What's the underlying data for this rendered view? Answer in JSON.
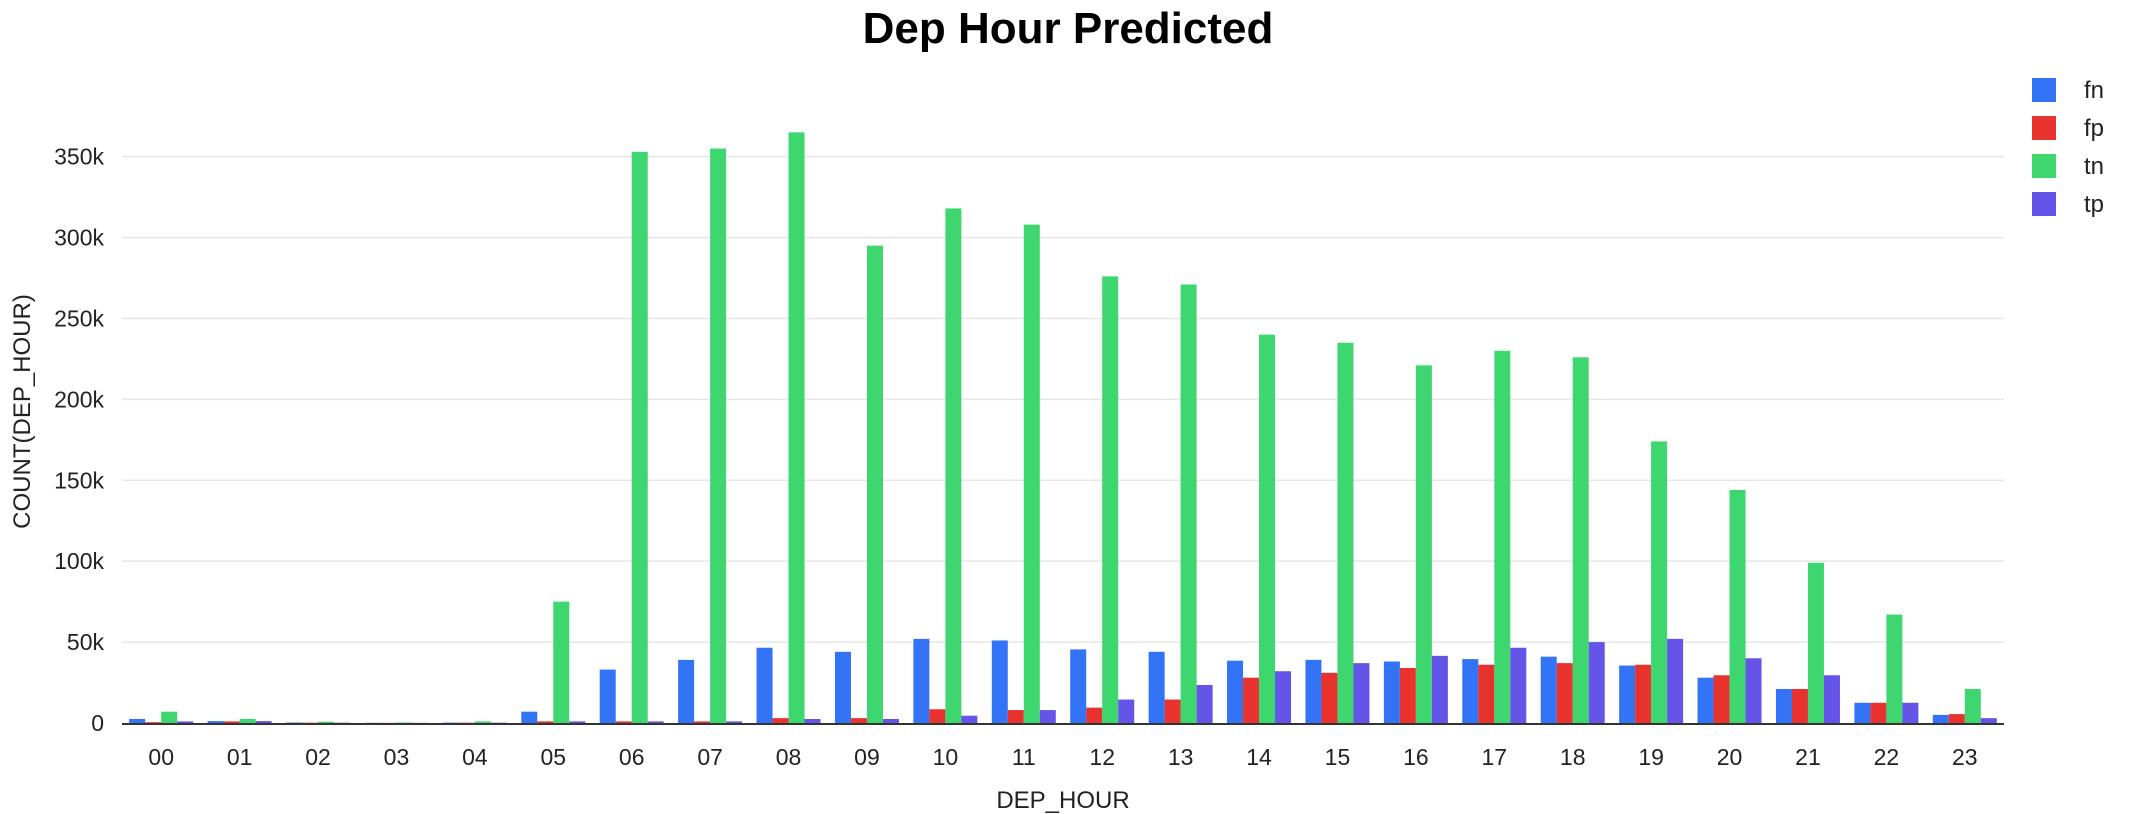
{
  "chart_data": {
    "type": "bar",
    "title": "Dep Hour Predicted",
    "xlabel": "DEP_HOUR",
    "ylabel": "COUNT(DEP_HOUR)",
    "ylim": [
      0,
      385000
    ],
    "yticks": [
      0,
      50000,
      100000,
      150000,
      200000,
      250000,
      300000,
      350000
    ],
    "ytick_labels": [
      "0",
      "50k",
      "100k",
      "150k",
      "200k",
      "250k",
      "300k",
      "350k"
    ],
    "grid": true,
    "legend_position": "top-right",
    "categories": [
      "00",
      "01",
      "02",
      "03",
      "04",
      "05",
      "06",
      "07",
      "08",
      "09",
      "10",
      "11",
      "12",
      "13",
      "14",
      "15",
      "16",
      "17",
      "18",
      "19",
      "20",
      "21",
      "22",
      "23"
    ],
    "series": [
      {
        "name": "fn",
        "color": "#3374f6",
        "values": [
          2500,
          1200,
          300,
          150,
          250,
          7000,
          33000,
          39000,
          46500,
          44000,
          52000,
          51000,
          45500,
          44000,
          38500,
          39000,
          38000,
          39500,
          41000,
          35500,
          28000,
          21000,
          12500,
          5000
        ]
      },
      {
        "name": "fp",
        "color": "#e8322d",
        "values": [
          500,
          1000,
          200,
          100,
          200,
          1000,
          1000,
          1000,
          3000,
          3000,
          8500,
          8000,
          9500,
          14500,
          28000,
          31000,
          34000,
          36000,
          37000,
          36000,
          29500,
          21000,
          12500,
          5500
        ]
      },
      {
        "name": "tn",
        "color": "#3dd66f",
        "values": [
          7000,
          2500,
          800,
          300,
          1000,
          75000,
          353000,
          355000,
          365000,
          295000,
          318000,
          308000,
          276000,
          271000,
          240000,
          235000,
          221000,
          230000,
          226000,
          174000,
          144000,
          99000,
          67000,
          21000
        ]
      },
      {
        "name": "tp",
        "color": "#6455e8",
        "values": [
          1000,
          1200,
          200,
          100,
          200,
          1000,
          1000,
          1000,
          2500,
          2500,
          4500,
          8000,
          14500,
          23500,
          32000,
          37000,
          41500,
          46500,
          50000,
          52000,
          40000,
          29500,
          12500,
          3000
        ]
      }
    ]
  }
}
